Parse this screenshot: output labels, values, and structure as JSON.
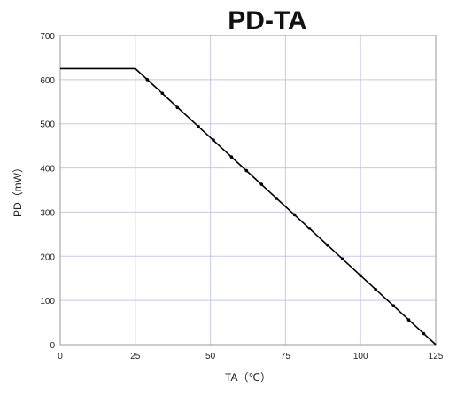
{
  "chart_data": {
    "type": "line",
    "title": "PD-TA",
    "xlabel": "TA（℃）",
    "ylabel": "PD（mW）",
    "xlim": [
      0,
      125
    ],
    "ylim": [
      0,
      700
    ],
    "x_ticks": [
      0,
      25,
      50,
      75,
      100,
      125
    ],
    "y_ticks": [
      0,
      100,
      200,
      300,
      400,
      500,
      600,
      700
    ],
    "grid": true,
    "legend": "none",
    "series": [
      {
        "x": [
          0,
          25,
          125
        ],
        "y": [
          625,
          625,
          0
        ],
        "color": "#000000"
      }
    ],
    "markers": {
      "x": [
        29,
        34,
        39,
        46,
        51,
        57,
        62,
        67,
        72,
        78,
        83,
        89,
        94,
        100,
        105,
        111,
        116,
        121
      ],
      "y": [
        600,
        569,
        537,
        494,
        463,
        425,
        394,
        363,
        331,
        294,
        263,
        225,
        194,
        156,
        125,
        88,
        56,
        25
      ]
    },
    "colors": {
      "grid": "#c8c8e6",
      "frame": "#9a9a9a",
      "line": "#000000"
    }
  }
}
